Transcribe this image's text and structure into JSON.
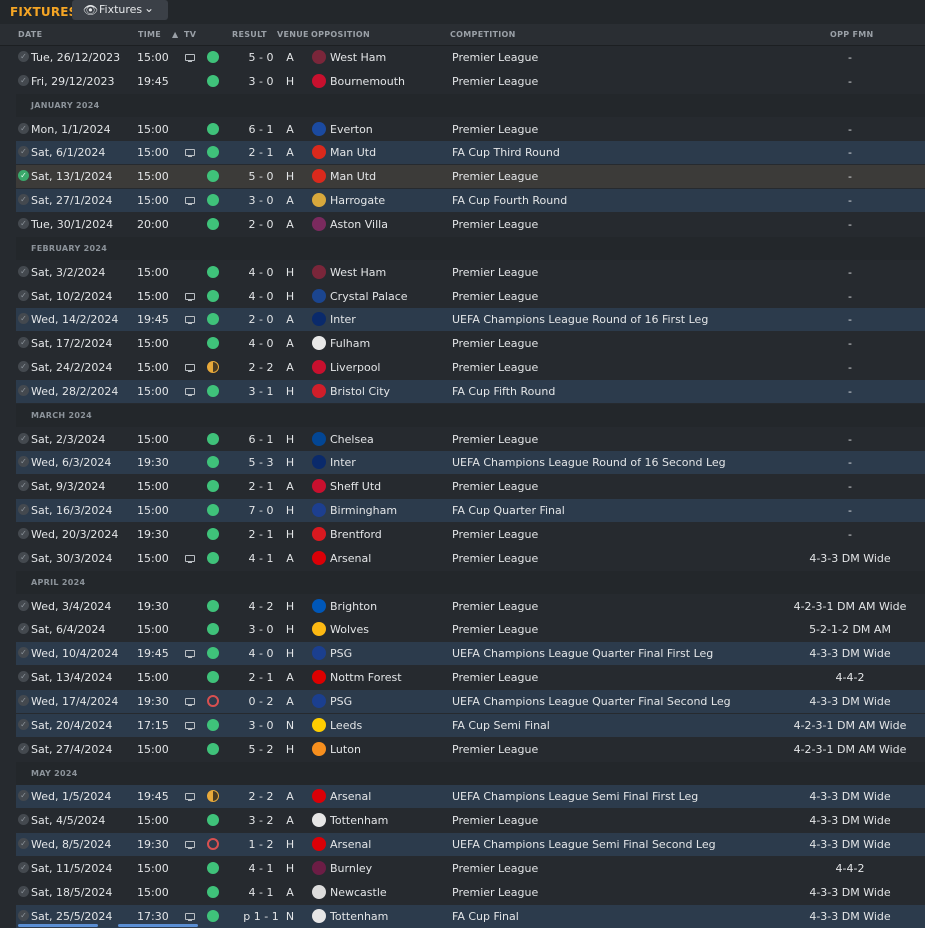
{
  "header": {
    "title": "FIXTURES",
    "view_button": "Fixtures"
  },
  "columns": {
    "date": "DATE",
    "time": "TIME",
    "tv": "TV",
    "result": "RESULT",
    "venue": "VENUE",
    "opposition": "OPPOSITION",
    "competition": "COMPETITION",
    "opp_fmn": "OPP FMN"
  },
  "colors": {
    "accent": "#f5a524",
    "win": "#3fc27a",
    "draw": "#e8a93a",
    "loss": "#d85050",
    "cup_row_tint": "#2c3b4c"
  },
  "rows": [
    {
      "kind": "match",
      "date": "Tue, 26/12/2023",
      "time": "15:00",
      "tv": true,
      "outcome": "W",
      "score": "5 - 0",
      "venue": "A",
      "opp": "West Ham",
      "comp": "Premier League",
      "fmn": "-",
      "badge": "#7a263a",
      "tint": false
    },
    {
      "kind": "match",
      "date": "Fri, 29/12/2023",
      "time": "19:45",
      "tv": false,
      "outcome": "W",
      "score": "3 - 0",
      "venue": "H",
      "opp": "Bournemouth",
      "comp": "Premier League",
      "fmn": "-",
      "badge": "#c8102e",
      "tint": false
    },
    {
      "kind": "month",
      "label": "JANUARY 2024"
    },
    {
      "kind": "match",
      "date": "Mon, 1/1/2024",
      "time": "15:00",
      "tv": false,
      "outcome": "W",
      "score": "6 - 1",
      "venue": "A",
      "opp": "Everton",
      "comp": "Premier League",
      "fmn": "-",
      "badge": "#1b4aa0",
      "tint": false
    },
    {
      "kind": "match",
      "date": "Sat, 6/1/2024",
      "time": "15:00",
      "tv": true,
      "outcome": "W",
      "score": "2 - 1",
      "venue": "A",
      "opp": "Man Utd",
      "comp": "FA Cup Third Round",
      "fmn": "-",
      "badge": "#da291c",
      "tint": true
    },
    {
      "kind": "match",
      "date": "Sat, 13/1/2024",
      "time": "15:00",
      "tv": false,
      "outcome": "W",
      "score": "5 - 0",
      "venue": "H",
      "opp": "Man Utd",
      "comp": "Premier League",
      "fmn": "-",
      "badge": "#da291c",
      "tint": false,
      "highlight": true,
      "done": true
    },
    {
      "kind": "match",
      "date": "Sat, 27/1/2024",
      "time": "15:00",
      "tv": true,
      "outcome": "W",
      "score": "3 - 0",
      "venue": "A",
      "opp": "Harrogate",
      "comp": "FA Cup Fourth Round",
      "fmn": "-",
      "badge": "#d8a83c",
      "tint": true
    },
    {
      "kind": "match",
      "date": "Tue, 30/1/2024",
      "time": "20:00",
      "tv": false,
      "outcome": "W",
      "score": "2 - 0",
      "venue": "A",
      "opp": "Aston Villa",
      "comp": "Premier League",
      "fmn": "-",
      "badge": "#7a2a5e",
      "tint": false
    },
    {
      "kind": "month",
      "label": "FEBRUARY 2024"
    },
    {
      "kind": "match",
      "date": "Sat, 3/2/2024",
      "time": "15:00",
      "tv": false,
      "outcome": "W",
      "score": "4 - 0",
      "venue": "H",
      "opp": "West Ham",
      "comp": "Premier League",
      "fmn": "-",
      "badge": "#7a263a",
      "tint": false
    },
    {
      "kind": "match",
      "date": "Sat, 10/2/2024",
      "time": "15:00",
      "tv": true,
      "outcome": "W",
      "score": "4 - 0",
      "venue": "H",
      "opp": "Crystal Palace",
      "comp": "Premier League",
      "fmn": "-",
      "badge": "#1b458f",
      "tint": false
    },
    {
      "kind": "match",
      "date": "Wed, 14/2/2024",
      "time": "19:45",
      "tv": true,
      "outcome": "W",
      "score": "2 - 0",
      "venue": "A",
      "opp": "Inter",
      "comp": "UEFA Champions League Round of 16 First Leg",
      "fmn": "-",
      "badge": "#0a2a6b",
      "tint": true
    },
    {
      "kind": "match",
      "date": "Sat, 17/2/2024",
      "time": "15:00",
      "tv": false,
      "outcome": "W",
      "score": "4 - 0",
      "venue": "A",
      "opp": "Fulham",
      "comp": "Premier League",
      "fmn": "-",
      "badge": "#e8e8e8",
      "tint": false
    },
    {
      "kind": "match",
      "date": "Sat, 24/2/2024",
      "time": "15:00",
      "tv": true,
      "outcome": "D",
      "score": "2 - 2",
      "venue": "A",
      "opp": "Liverpool",
      "comp": "Premier League",
      "fmn": "-",
      "badge": "#c8102e",
      "tint": false
    },
    {
      "kind": "match",
      "date": "Wed, 28/2/2024",
      "time": "15:00",
      "tv": true,
      "outcome": "W",
      "score": "3 - 1",
      "venue": "H",
      "opp": "Bristol City",
      "comp": "FA Cup Fifth Round",
      "fmn": "-",
      "badge": "#d01e2a",
      "tint": true
    },
    {
      "kind": "month",
      "label": "MARCH 2024"
    },
    {
      "kind": "match",
      "date": "Sat, 2/3/2024",
      "time": "15:00",
      "tv": false,
      "outcome": "W",
      "score": "6 - 1",
      "venue": "H",
      "opp": "Chelsea",
      "comp": "Premier League",
      "fmn": "-",
      "badge": "#034694",
      "tint": false
    },
    {
      "kind": "match",
      "date": "Wed, 6/3/2024",
      "time": "19:30",
      "tv": false,
      "outcome": "W",
      "score": "5 - 3",
      "venue": "H",
      "opp": "Inter",
      "comp": "UEFA Champions League Round of 16 Second Leg",
      "fmn": "-",
      "badge": "#0a2a6b",
      "tint": true
    },
    {
      "kind": "match",
      "date": "Sat, 9/3/2024",
      "time": "15:00",
      "tv": false,
      "outcome": "W",
      "score": "2 - 1",
      "venue": "A",
      "opp": "Sheff Utd",
      "comp": "Premier League",
      "fmn": "-",
      "badge": "#c8102e",
      "tint": false
    },
    {
      "kind": "match",
      "date": "Sat, 16/3/2024",
      "time": "15:00",
      "tv": false,
      "outcome": "W",
      "score": "7 - 0",
      "venue": "H",
      "opp": "Birmingham",
      "comp": "FA Cup Quarter Final",
      "fmn": "-",
      "badge": "#1d3f8f",
      "tint": true
    },
    {
      "kind": "match",
      "date": "Wed, 20/3/2024",
      "time": "19:30",
      "tv": false,
      "outcome": "W",
      "score": "2 - 1",
      "venue": "H",
      "opp": "Brentford",
      "comp": "Premier League",
      "fmn": "-",
      "badge": "#d81920",
      "tint": false
    },
    {
      "kind": "match",
      "date": "Sat, 30/3/2024",
      "time": "15:00",
      "tv": true,
      "outcome": "W",
      "score": "4 - 1",
      "venue": "A",
      "opp": "Arsenal",
      "comp": "Premier League",
      "fmn": "4-3-3 DM Wide",
      "badge": "#db0007",
      "tint": false
    },
    {
      "kind": "month",
      "label": "APRIL 2024"
    },
    {
      "kind": "match",
      "date": "Wed, 3/4/2024",
      "time": "19:30",
      "tv": false,
      "outcome": "W",
      "score": "4 - 2",
      "venue": "H",
      "opp": "Brighton",
      "comp": "Premier League",
      "fmn": "4-2-3-1 DM AM Wide",
      "badge": "#0057b8",
      "tint": false
    },
    {
      "kind": "match",
      "date": "Sat, 6/4/2024",
      "time": "15:00",
      "tv": false,
      "outcome": "W",
      "score": "3 - 0",
      "venue": "H",
      "opp": "Wolves",
      "comp": "Premier League",
      "fmn": "5-2-1-2 DM AM",
      "badge": "#fdb913",
      "tint": false
    },
    {
      "kind": "match",
      "date": "Wed, 10/4/2024",
      "time": "19:45",
      "tv": true,
      "outcome": "W",
      "score": "4 - 0",
      "venue": "H",
      "opp": "PSG",
      "comp": "UEFA Champions League Quarter Final First Leg",
      "fmn": "4-3-3 DM Wide",
      "badge": "#1b3f8f",
      "tint": true
    },
    {
      "kind": "match",
      "date": "Sat, 13/4/2024",
      "time": "15:00",
      "tv": false,
      "outcome": "W",
      "score": "2 - 1",
      "venue": "A",
      "opp": "Nottm Forest",
      "comp": "Premier League",
      "fmn": "4-4-2",
      "badge": "#dd0000",
      "tint": false
    },
    {
      "kind": "match",
      "date": "Wed, 17/4/2024",
      "time": "19:30",
      "tv": true,
      "outcome": "L",
      "score": "0 - 2",
      "venue": "A",
      "opp": "PSG",
      "comp": "UEFA Champions League Quarter Final Second Leg",
      "fmn": "4-3-3 DM Wide",
      "badge": "#1b3f8f",
      "tint": true
    },
    {
      "kind": "match",
      "date": "Sat, 20/4/2024",
      "time": "17:15",
      "tv": true,
      "outcome": "W",
      "score": "3 - 0",
      "venue": "N",
      "opp": "Leeds",
      "comp": "FA Cup Semi Final",
      "fmn": "4-2-3-1 DM AM Wide",
      "badge": "#ffcd00",
      "tint": true
    },
    {
      "kind": "match",
      "date": "Sat, 27/4/2024",
      "time": "15:00",
      "tv": false,
      "outcome": "W",
      "score": "5 - 2",
      "venue": "H",
      "opp": "Luton",
      "comp": "Premier League",
      "fmn": "4-2-3-1 DM AM Wide",
      "badge": "#f78f1e",
      "tint": false
    },
    {
      "kind": "month",
      "label": "MAY 2024"
    },
    {
      "kind": "match",
      "date": "Wed, 1/5/2024",
      "time": "19:45",
      "tv": true,
      "outcome": "D",
      "score": "2 - 2",
      "venue": "A",
      "opp": "Arsenal",
      "comp": "UEFA Champions League Semi Final First Leg",
      "fmn": "4-3-3 DM Wide",
      "badge": "#db0007",
      "tint": true
    },
    {
      "kind": "match",
      "date": "Sat, 4/5/2024",
      "time": "15:00",
      "tv": false,
      "outcome": "W",
      "score": "3 - 2",
      "venue": "A",
      "opp": "Tottenham",
      "comp": "Premier League",
      "fmn": "4-3-3 DM Wide",
      "badge": "#e6e6e6",
      "tint": false
    },
    {
      "kind": "match",
      "date": "Wed, 8/5/2024",
      "time": "19:30",
      "tv": true,
      "outcome": "L",
      "score": "1 - 2",
      "venue": "H",
      "opp": "Arsenal",
      "comp": "UEFA Champions League Semi Final Second Leg",
      "fmn": "4-3-3 DM Wide",
      "badge": "#db0007",
      "tint": true
    },
    {
      "kind": "match",
      "date": "Sat, 11/5/2024",
      "time": "15:00",
      "tv": false,
      "outcome": "W",
      "score": "4 - 1",
      "venue": "H",
      "opp": "Burnley",
      "comp": "Premier League",
      "fmn": "4-4-2",
      "badge": "#6c1d45",
      "tint": false
    },
    {
      "kind": "match",
      "date": "Sat, 18/5/2024",
      "time": "15:00",
      "tv": false,
      "outcome": "W",
      "score": "4 - 1",
      "venue": "A",
      "opp": "Newcastle",
      "comp": "Premier League",
      "fmn": "4-3-3 DM Wide",
      "badge": "#dcdcdc",
      "tint": false
    },
    {
      "kind": "match",
      "date": "Sat, 25/5/2024",
      "time": "17:30",
      "tv": true,
      "outcome": "W",
      "score": "p 1 - 1",
      "venue": "N",
      "opp": "Tottenham",
      "comp": "FA Cup Final",
      "fmn": "4-3-3 DM Wide",
      "badge": "#e6e6e6",
      "tint": true
    }
  ]
}
